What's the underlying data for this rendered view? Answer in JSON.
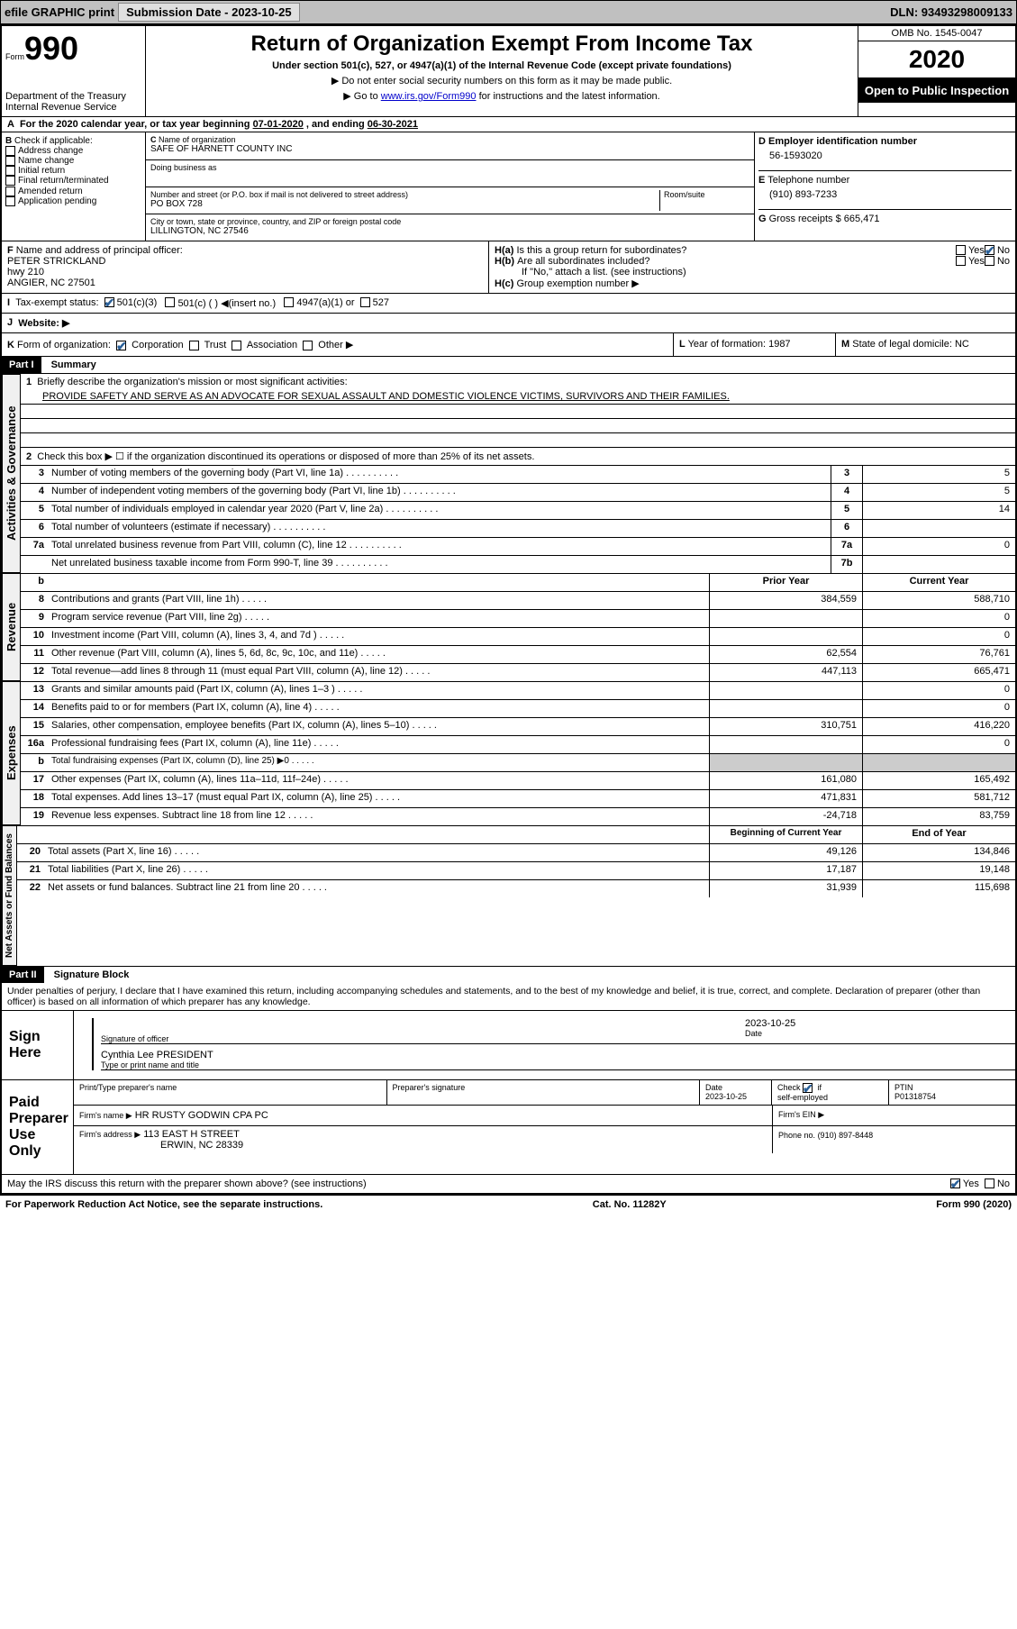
{
  "topbar": {
    "efile": "efile GRAPHIC print",
    "submission_label": "Submission Date - 2023-10-25",
    "dln": "DLN: 93493298009133"
  },
  "header": {
    "form": "Form",
    "form_no": "990",
    "dept": "Department of the Treasury\nInternal Revenue Service",
    "title": "Return of Organization Exempt From Income Tax",
    "subtitle": "Under section 501(c), 527, or 4947(a)(1) of the Internal Revenue Code (except private foundations)",
    "note1": "▶ Do not enter social security numbers on this form as it may be made public.",
    "note2_pre": "▶ Go to ",
    "note2_link": "www.irs.gov/Form990",
    "note2_post": " for instructions and the latest information.",
    "omb": "OMB No. 1545-0047",
    "year": "2020",
    "inspection": "Open to Public Inspection"
  },
  "period": {
    "text_a": "For the 2020 calendar year, or tax year beginning ",
    "begin": "07-01-2020",
    "mid": " , and ending ",
    "end": "06-30-2021"
  },
  "boxB": {
    "label": "Check if applicable:",
    "items": [
      "Address change",
      "Name change",
      "Initial return",
      "Final return/terminated",
      "Amended return",
      "Application pending"
    ]
  },
  "boxC": {
    "name_label": "Name of organization",
    "name": "SAFE OF HARNETT COUNTY INC",
    "dba_label": "Doing business as",
    "addr_label": "Number and street (or P.O. box if mail is not delivered to street address)",
    "room_label": "Room/suite",
    "addr": "PO BOX 728",
    "city_label": "City or town, state or province, country, and ZIP or foreign postal code",
    "city": "LILLINGTON, NC  27546"
  },
  "boxD": {
    "label": "Employer identification number",
    "value": "56-1593020"
  },
  "boxE": {
    "label": "Telephone number",
    "value": "(910) 893-7233"
  },
  "boxG": {
    "label": "Gross receipts $",
    "value": "665,471"
  },
  "boxF": {
    "label": "Name and address of principal officer:",
    "name": "PETER STRICKLAND",
    "addr1": "hwy 210",
    "addr2": "ANGIER, NC  27501"
  },
  "boxH": {
    "a": "Is this a group return for subordinates?",
    "b": "Are all subordinates included?",
    "b_note": "If \"No,\" attach a list. (see instructions)",
    "c": "Group exemption number ▶"
  },
  "taxexempt": {
    "label": "Tax-exempt status:",
    "opts": [
      "501(c)(3)",
      "501(c) (   ) ◀(insert no.)",
      "4947(a)(1) or",
      "527"
    ]
  },
  "website": {
    "label": "Website: ▶"
  },
  "boxK": {
    "label": "Form of organization:",
    "opts": [
      "Corporation",
      "Trust",
      "Association",
      "Other ▶"
    ]
  },
  "boxL": {
    "label": "Year of formation:",
    "value": "1987"
  },
  "boxM": {
    "label": "State of legal domicile:",
    "value": "NC"
  },
  "partI": {
    "header": "Part I",
    "title": "Summary",
    "line1_label": "Briefly describe the organization's mission or most significant activities:",
    "mission": "PROVIDE SAFETY AND SERVE AS AN ADVOCATE FOR SEXUAL ASSAULT AND DOMESTIC VIOLENCE VICTIMS, SURVIVORS AND THEIR FAMILIES.",
    "line2": "Check this box ▶ ☐ if the organization discontinued its operations or disposed of more than 25% of its net assets.",
    "governance_tab": "Activities & Governance",
    "revenue_tab": "Revenue",
    "expenses_tab": "Expenses",
    "netassets_tab": "Net Assets or Fund Balances",
    "rows_top": [
      {
        "n": "3",
        "d": "Number of voting members of the governing body (Part VI, line 1a)",
        "box": "3",
        "v": "5"
      },
      {
        "n": "4",
        "d": "Number of independent voting members of the governing body (Part VI, line 1b)",
        "box": "4",
        "v": "5"
      },
      {
        "n": "5",
        "d": "Total number of individuals employed in calendar year 2020 (Part V, line 2a)",
        "box": "5",
        "v": "14"
      },
      {
        "n": "6",
        "d": "Total number of volunteers (estimate if necessary)",
        "box": "6",
        "v": ""
      },
      {
        "n": "7a",
        "d": "Total unrelated business revenue from Part VIII, column (C), line 12",
        "box": "7a",
        "v": "0"
      },
      {
        "n": "",
        "d": "Net unrelated business taxable income from Form 990-T, line 39",
        "box": "7b",
        "v": ""
      }
    ],
    "col_headers": {
      "b": "b",
      "py": "Prior Year",
      "cy": "Current Year"
    },
    "rows_rev": [
      {
        "n": "8",
        "d": "Contributions and grants (Part VIII, line 1h)",
        "py": "384,559",
        "cy": "588,710"
      },
      {
        "n": "9",
        "d": "Program service revenue (Part VIII, line 2g)",
        "py": "",
        "cy": "0"
      },
      {
        "n": "10",
        "d": "Investment income (Part VIII, column (A), lines 3, 4, and 7d )",
        "py": "",
        "cy": "0"
      },
      {
        "n": "11",
        "d": "Other revenue (Part VIII, column (A), lines 5, 6d, 8c, 9c, 10c, and 11e)",
        "py": "62,554",
        "cy": "76,761"
      },
      {
        "n": "12",
        "d": "Total revenue—add lines 8 through 11 (must equal Part VIII, column (A), line 12)",
        "py": "447,113",
        "cy": "665,471"
      }
    ],
    "rows_exp": [
      {
        "n": "13",
        "d": "Grants and similar amounts paid (Part IX, column (A), lines 1–3 )",
        "py": "",
        "cy": "0"
      },
      {
        "n": "14",
        "d": "Benefits paid to or for members (Part IX, column (A), line 4)",
        "py": "",
        "cy": "0"
      },
      {
        "n": "15",
        "d": "Salaries, other compensation, employee benefits (Part IX, column (A), lines 5–10)",
        "py": "310,751",
        "cy": "416,220"
      },
      {
        "n": "16a",
        "d": "Professional fundraising fees (Part IX, column (A), line 11e)",
        "py": "",
        "cy": "0"
      },
      {
        "n": "b",
        "d": "Total fundraising expenses (Part IX, column (D), line 25) ▶0",
        "py": "GREY",
        "cy": "GREY",
        "small": true
      },
      {
        "n": "17",
        "d": "Other expenses (Part IX, column (A), lines 11a–11d, 11f–24e)",
        "py": "161,080",
        "cy": "165,492"
      },
      {
        "n": "18",
        "d": "Total expenses. Add lines 13–17 (must equal Part IX, column (A), line 25)",
        "py": "471,831",
        "cy": "581,712"
      },
      {
        "n": "19",
        "d": "Revenue less expenses. Subtract line 18 from line 12",
        "py": "-24,718",
        "cy": "83,759"
      }
    ],
    "col_headers2": {
      "py": "Beginning of Current Year",
      "cy": "End of Year"
    },
    "rows_na": [
      {
        "n": "20",
        "d": "Total assets (Part X, line 16)",
        "py": "49,126",
        "cy": "134,846"
      },
      {
        "n": "21",
        "d": "Total liabilities (Part X, line 26)",
        "py": "17,187",
        "cy": "19,148"
      },
      {
        "n": "22",
        "d": "Net assets or fund balances. Subtract line 21 from line 20",
        "py": "31,939",
        "cy": "115,698"
      }
    ]
  },
  "partII": {
    "header": "Part II",
    "title": "Signature Block",
    "penalty": "Under penalties of perjury, I declare that I have examined this return, including accompanying schedules and statements, and to the best of my knowledge and belief, it is true, correct, and complete. Declaration of preparer (other than officer) is based on all information of which preparer has any knowledge.",
    "sign_here": "Sign Here",
    "sig_officer": "Signature of officer",
    "sig_date": "2023-10-25",
    "date_label": "Date",
    "officer_name": "Cynthia Lee PRESIDENT",
    "type_name": "Type or print name and title",
    "paid_prep": "Paid Preparer Use Only",
    "prep_name_label": "Print/Type preparer's name",
    "prep_sig_label": "Preparer's signature",
    "prep_date_label": "Date",
    "prep_date": "2023-10-25",
    "self_emp": "Check ☑ if self-employed",
    "ptin_label": "PTIN",
    "ptin": "P01318754",
    "firm_name_label": "Firm's name    ▶",
    "firm_name": "HR RUSTY GODWIN CPA PC",
    "firm_ein_label": "Firm's EIN ▶",
    "firm_addr_label": "Firm's address ▶",
    "firm_addr": "113 EAST H STREET",
    "firm_city": "ERWIN, NC  28339",
    "phone_label": "Phone no.",
    "phone": "(910) 897-8448",
    "discuss": "May the IRS discuss this return with the preparer shown above? (see instructions)"
  },
  "footer": {
    "left": "For Paperwork Reduction Act Notice, see the separate instructions.",
    "center": "Cat. No. 11282Y",
    "right": "Form 990 (2020)"
  },
  "colors": {
    "header_grey": "#c0c0c0",
    "black": "#000000",
    "link_blue": "#0000cc",
    "check_blue": "#2a6099"
  }
}
